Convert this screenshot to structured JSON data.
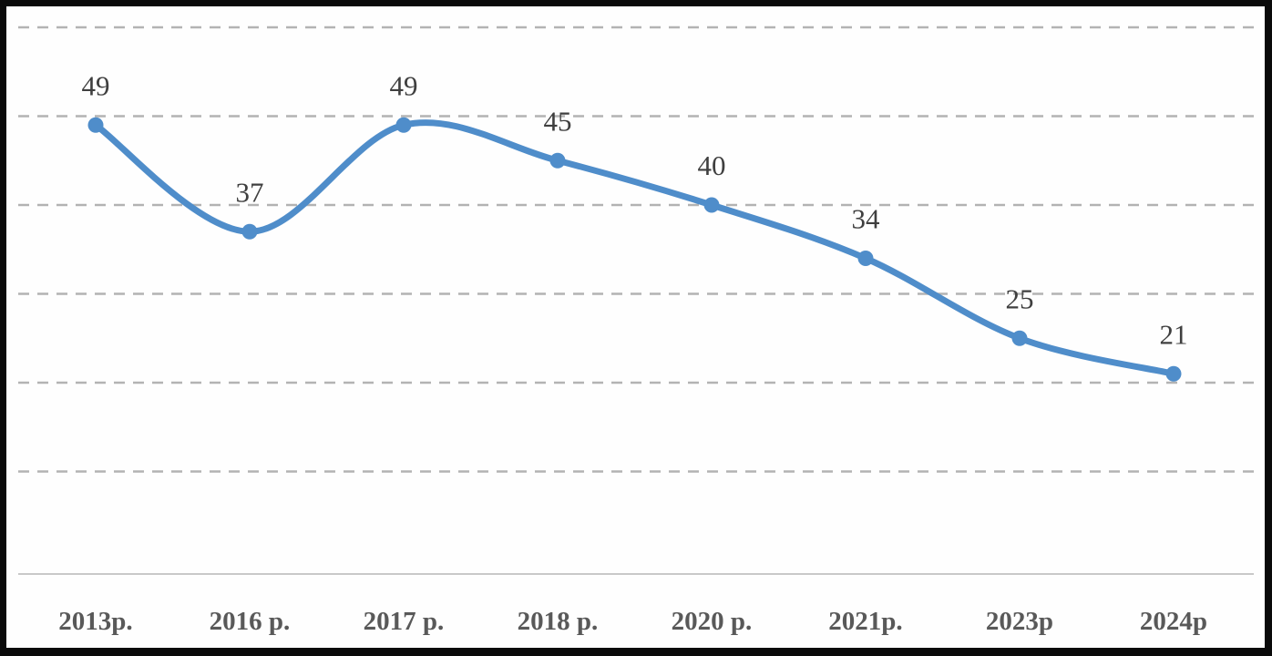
{
  "chart_data": {
    "type": "line",
    "title": "",
    "xlabel": "",
    "ylabel": "",
    "categories": [
      "2013p.",
      "2016 p.",
      "2017 p.",
      "2018 p.",
      "2020 p.",
      "2021p.",
      "2023p",
      "2024p"
    ],
    "values": [
      49,
      37,
      49,
      45,
      40,
      34,
      25,
      21
    ],
    "data_labels": [
      "49",
      "37",
      "49",
      "45",
      "40",
      "34",
      "25",
      "21"
    ],
    "ylim": [
      0,
      60
    ],
    "gridline_values": [
      60,
      50,
      40,
      30,
      20,
      10
    ],
    "grid": "horizontal-dashed",
    "legend": "none",
    "smooth": true,
    "colors": {
      "line": "#4f8dca",
      "marker": "#4f8dca",
      "gridline": "#b3b3b3",
      "axis_line": "#c9c9c9",
      "data_label": "#3f3f3f",
      "x_axis_label": "#595959",
      "plot_background": "#fefefe",
      "frame_border": "#0a0a0a"
    }
  }
}
